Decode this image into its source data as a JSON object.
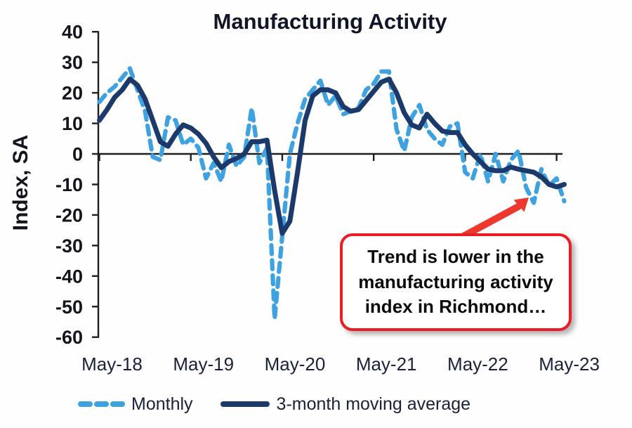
{
  "chart_data": {
    "type": "line",
    "title": "Manufacturing Activity",
    "ylabel": "Index, SA",
    "ylim": [
      -60,
      40
    ],
    "y_ticks": [
      40,
      30,
      20,
      10,
      0,
      -10,
      -20,
      -30,
      -40,
      -50,
      -60
    ],
    "x_tick_labels": [
      "May-18",
      "May-19",
      "May-20",
      "May-21",
      "May-22",
      "May-23"
    ],
    "grid": false,
    "legend_position": "bottom",
    "x_months": [
      "May-18",
      "Jun-18",
      "Jul-18",
      "Aug-18",
      "Sep-18",
      "Oct-18",
      "Nov-18",
      "Dec-18",
      "Jan-19",
      "Feb-19",
      "Mar-19",
      "Apr-19",
      "May-19",
      "Jun-19",
      "Jul-19",
      "Aug-19",
      "Sep-19",
      "Oct-19",
      "Nov-19",
      "Dec-19",
      "Jan-20",
      "Feb-20",
      "Mar-20",
      "Apr-20",
      "May-20",
      "Jun-20",
      "Jul-20",
      "Aug-20",
      "Sep-20",
      "Oct-20",
      "Nov-20",
      "Dec-20",
      "Jan-21",
      "Feb-21",
      "Mar-21",
      "Apr-21",
      "May-21",
      "Jun-21",
      "Jul-21",
      "Aug-21",
      "Sep-21",
      "Oct-21",
      "Nov-21",
      "Dec-21",
      "Jan-22",
      "Feb-22",
      "Mar-22",
      "Apr-22",
      "May-22",
      "Jun-22",
      "Jul-22",
      "Aug-22",
      "Sep-22",
      "Oct-22",
      "Nov-22",
      "Dec-22",
      "Jan-23",
      "Feb-23",
      "Mar-23",
      "Apr-23",
      "May-23",
      "Jun-23"
    ],
    "series": [
      {
        "name": "Monthly",
        "style": "dashed",
        "color": "#3fa2e0",
        "values": [
          17,
          20,
          22,
          25,
          28,
          21,
          14,
          -1,
          -2,
          12,
          11,
          3,
          5,
          2,
          -8,
          -3,
          -9,
          3,
          -4,
          -1,
          15,
          -3,
          2,
          -54,
          -27,
          0,
          10,
          18,
          21,
          24,
          16,
          19,
          13,
          14,
          15,
          21,
          23,
          27,
          27,
          8,
          1,
          12,
          16,
          8,
          5,
          3,
          9,
          10,
          -6,
          -8,
          0,
          -9,
          0,
          -9,
          -2,
          1,
          -11,
          -16,
          -5,
          -10.5,
          -8,
          -15.5
        ]
      },
      {
        "name": "3-month moving average",
        "style": "solid",
        "color": "#1b3a6b",
        "values": [
          11,
          14.5,
          18.5,
          21,
          24.5,
          22.5,
          18,
          11,
          4,
          2.5,
          6.5,
          9.5,
          8.5,
          6.5,
          3.5,
          -1,
          -4.5,
          -2.5,
          -1.5,
          0,
          4,
          4,
          4.5,
          -12,
          -26,
          -22,
          -6,
          11,
          19,
          21,
          21,
          20,
          15.5,
          14,
          14.5,
          17.5,
          20.5,
          23.5,
          24.5,
          20,
          13.5,
          9.5,
          8.5,
          13,
          10,
          7.5,
          7,
          7,
          3,
          0,
          -2.5,
          -5,
          -5.5,
          -5.5,
          -4.3,
          -5,
          -5.5,
          -6,
          -7.5,
          -10,
          -10.8,
          -10
        ]
      }
    ]
  },
  "annotation": {
    "lines": [
      "Trend is lower in the",
      "manufacturing activity",
      "index in Richmond…"
    ],
    "border_color": "#ec1c24",
    "arrow_color": "#ee382d"
  },
  "legend": {
    "monthly_label": "Monthly",
    "ma_label": "3-month moving average"
  },
  "colors": {
    "monthly": "#3fa2e0",
    "moving_average": "#1b3a6b",
    "axis": "#1f1f1f",
    "annotation_red": "#ec1c24"
  }
}
